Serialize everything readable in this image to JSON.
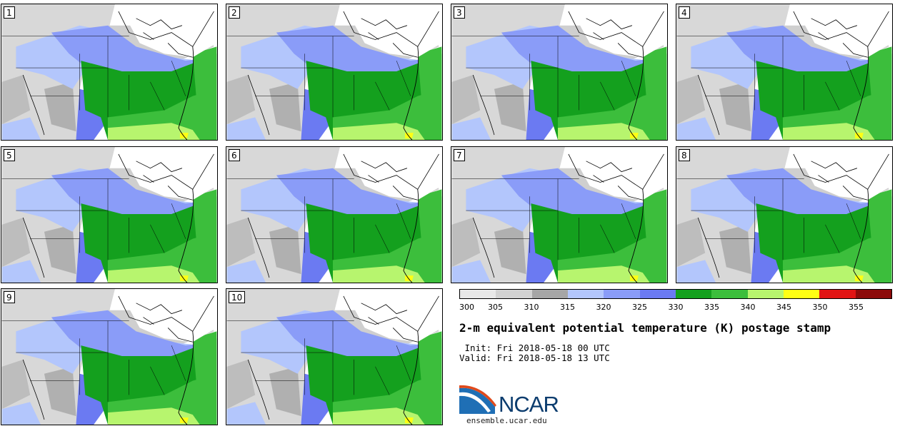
{
  "panels": [
    {
      "label": "1"
    },
    {
      "label": "2"
    },
    {
      "label": "3"
    },
    {
      "label": "4"
    },
    {
      "label": "5"
    },
    {
      "label": "6"
    },
    {
      "label": "7"
    },
    {
      "label": "8"
    },
    {
      "label": "9"
    },
    {
      "label": "10"
    }
  ],
  "colorbar": {
    "ticks": [
      "300",
      "305",
      "310",
      "315",
      "320",
      "325",
      "330",
      "335",
      "340",
      "345",
      "350",
      "355"
    ],
    "colors": [
      "#e8e8e8",
      "#d2d2d2",
      "#a6a6a6",
      "#b3c6fc",
      "#8a9cf8",
      "#6b7af2",
      "#14a01e",
      "#3cbe3c",
      "#b7f56e",
      "#ffff14",
      "#e11414",
      "#8c0a0a"
    ]
  },
  "title": "2-m equivalent potential temperature (K) postage stamp",
  "init_text": " Init: Fri 2018-05-18 00 UTC",
  "valid_text": "Valid: Fri 2018-05-18 13 UTC",
  "logo": {
    "name": "NCAR",
    "url": "ensemble.ucar.edu"
  }
}
